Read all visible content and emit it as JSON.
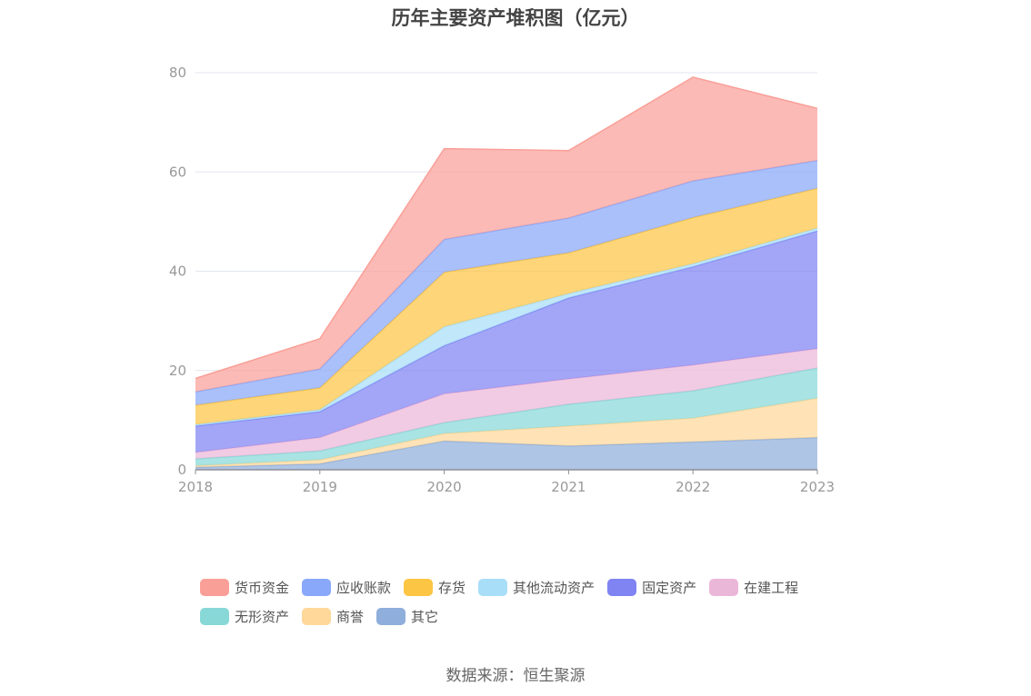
{
  "chart_data": {
    "type": "area",
    "stacked": true,
    "title": "历年主要资产堆积图（亿元）",
    "x": [
      "2018",
      "2019",
      "2020",
      "2021",
      "2022",
      "2023"
    ],
    "ylim": [
      0,
      80
    ],
    "yticks": [
      0,
      20,
      40,
      60,
      80
    ],
    "grid": true,
    "legend_position": "bottom",
    "series": [
      {
        "name": "其它",
        "color": "#8faedb",
        "values": [
          0.5,
          1.2,
          5.8,
          4.8,
          5.6,
          6.5
        ]
      },
      {
        "name": "商誉",
        "color": "#ffd89a",
        "values": [
          0.3,
          0.8,
          1.5,
          4.0,
          4.8,
          7.9
        ]
      },
      {
        "name": "无形资产",
        "color": "#88d8d8",
        "values": [
          1.4,
          1.8,
          2.2,
          4.4,
          5.5,
          6.1
        ]
      },
      {
        "name": "在建工程",
        "color": "#ebb7d8",
        "values": [
          1.3,
          2.7,
          5.8,
          5.1,
          5.2,
          3.9
        ]
      },
      {
        "name": "固定资产",
        "color": "#7f84f2",
        "values": [
          5.3,
          5.2,
          9.7,
          16.3,
          19.8,
          23.7
        ]
      },
      {
        "name": "其他流动资产",
        "color": "#a8def8",
        "values": [
          0.3,
          0.4,
          3.8,
          0.9,
          0.6,
          0.6
        ]
      },
      {
        "name": "存货",
        "color": "#fdc544",
        "values": [
          3.9,
          4.4,
          11.0,
          8.2,
          9.3,
          8.0
        ]
      },
      {
        "name": "应收账款",
        "color": "#89a8fa",
        "values": [
          2.7,
          3.8,
          6.6,
          7.0,
          7.4,
          5.6
        ]
      },
      {
        "name": "货币资金",
        "color": "#fa9f98",
        "values": [
          2.7,
          6.1,
          18.3,
          13.6,
          20.9,
          10.5
        ]
      }
    ]
  },
  "legend": {
    "row1": [
      {
        "label": "货币资金",
        "color": "#fa9f98"
      },
      {
        "label": "应收账款",
        "color": "#89a8fa"
      },
      {
        "label": "存货",
        "color": "#fdc544"
      },
      {
        "label": "其他流动资产",
        "color": "#a8def8"
      },
      {
        "label": "固定资产",
        "color": "#7f84f2"
      },
      {
        "label": "在建工程",
        "color": "#ebb7d8"
      }
    ],
    "row2": [
      {
        "label": "无形资产",
        "color": "#88d8d8"
      },
      {
        "label": "商誉",
        "color": "#ffd89a"
      },
      {
        "label": "其它",
        "color": "#8faedb"
      }
    ]
  },
  "source": "数据来源：恒生聚源"
}
